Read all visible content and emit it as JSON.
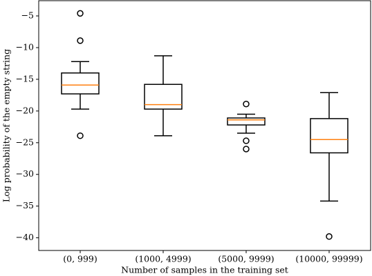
{
  "chart_data": {
    "type": "box",
    "xlabel": "Number of samples in the training set",
    "ylabel": "Log probability of the empty string",
    "categories": [
      "(0, 999)",
      "(1000, 4999)",
      "(5000, 9999)",
      "(10000, 99999)"
    ],
    "boxes": [
      {
        "whisker_high": -12.2,
        "q3": -14.0,
        "median": -15.9,
        "q1": -17.3,
        "whisker_low": -19.7,
        "outliers": [
          -4.6,
          -8.9,
          -23.9
        ]
      },
      {
        "whisker_high": -11.3,
        "q3": -15.8,
        "median": -19.0,
        "q1": -19.7,
        "whisker_low": -23.9,
        "outliers": []
      },
      {
        "whisker_high": -20.5,
        "q3": -21.1,
        "median": -21.4,
        "q1": -22.2,
        "whisker_low": -23.5,
        "outliers": [
          -18.9,
          -24.7,
          -26.0
        ]
      },
      {
        "whisker_high": -17.1,
        "q3": -21.2,
        "median": -24.5,
        "q1": -26.6,
        "whisker_low": -34.2,
        "outliers": [
          -39.8
        ]
      }
    ],
    "box_color": "#000000",
    "median_color": "#ff7f0e",
    "ylim": [
      -42,
      -2.6
    ],
    "yticks": [
      {
        "value": -5,
        "label": "−5"
      },
      {
        "value": -10,
        "label": "−10"
      },
      {
        "value": -15,
        "label": "−15"
      },
      {
        "value": -20,
        "label": "−20"
      },
      {
        "value": -25,
        "label": "−25"
      },
      {
        "value": -30,
        "label": "−30"
      },
      {
        "value": -35,
        "label": "−35"
      },
      {
        "value": -40,
        "label": "−40"
      }
    ]
  }
}
